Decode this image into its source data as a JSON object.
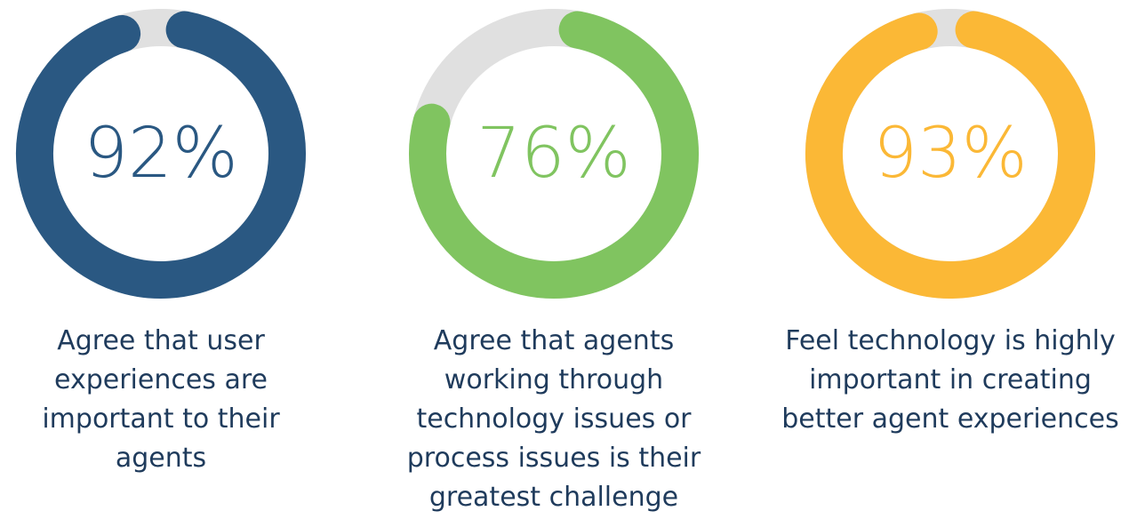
{
  "chart_data": [
    {
      "type": "donut",
      "value": 92,
      "label": "92%",
      "caption": "Agree that user\nexperiences are\nimportant to their\nagents",
      "color": "#2a5882",
      "track_color": "#e0e0e0"
    },
    {
      "type": "donut",
      "value": 76,
      "label": "76%",
      "caption": "Agree that agents\nworking through\ntechnology issues or\nprocess issues is their\ngreatest challenge",
      "color": "#80c460",
      "track_color": "#e0e0e0"
    },
    {
      "type": "donut",
      "value": 93,
      "label": "93%",
      "caption": "Feel technology is highly\nimportant in creating\nbetter agent experiences",
      "color": "#fbb836",
      "track_color": "#e0e0e0"
    }
  ]
}
